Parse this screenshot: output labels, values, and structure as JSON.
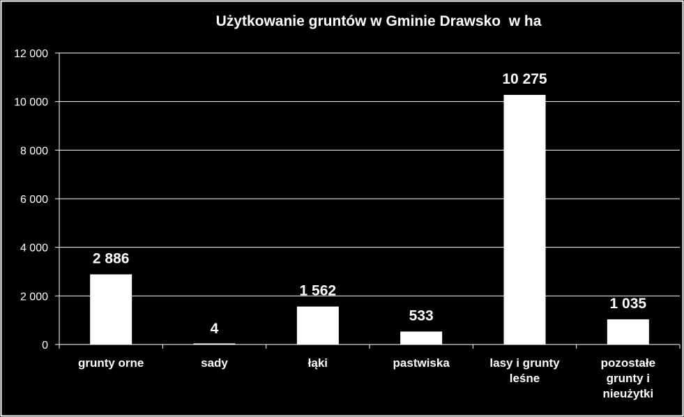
{
  "chart_data": {
    "type": "bar",
    "title": "Użytkowanie gruntów w Gminie Drawsko  w ha",
    "xlabel": "",
    "ylabel": "",
    "categories": [
      [
        "grunty orne"
      ],
      [
        "sady"
      ],
      [
        "łąki"
      ],
      [
        "pastwiska"
      ],
      [
        "lasy i grunty",
        "leśne"
      ],
      [
        "pozostałe",
        "grunty i",
        "nieużytki"
      ]
    ],
    "values": [
      2886,
      4,
      1562,
      533,
      10275,
      1035
    ],
    "value_labels": [
      "2 886",
      "4",
      "1 562",
      "533",
      "10 275",
      "1 035"
    ],
    "ylim": [
      0,
      12000
    ],
    "yticks": [
      0,
      2000,
      4000,
      6000,
      8000,
      10000,
      12000
    ],
    "ytick_labels": [
      "0",
      "2 000",
      "4 000",
      "6 000",
      "8 000",
      "10 000",
      "12 000"
    ],
    "grid": true,
    "legend": "none",
    "colors": {
      "background": "#000000",
      "bar": "#ffffff",
      "text": "#ffffff",
      "grid": "#ffffff",
      "border": "#ffffff"
    }
  }
}
